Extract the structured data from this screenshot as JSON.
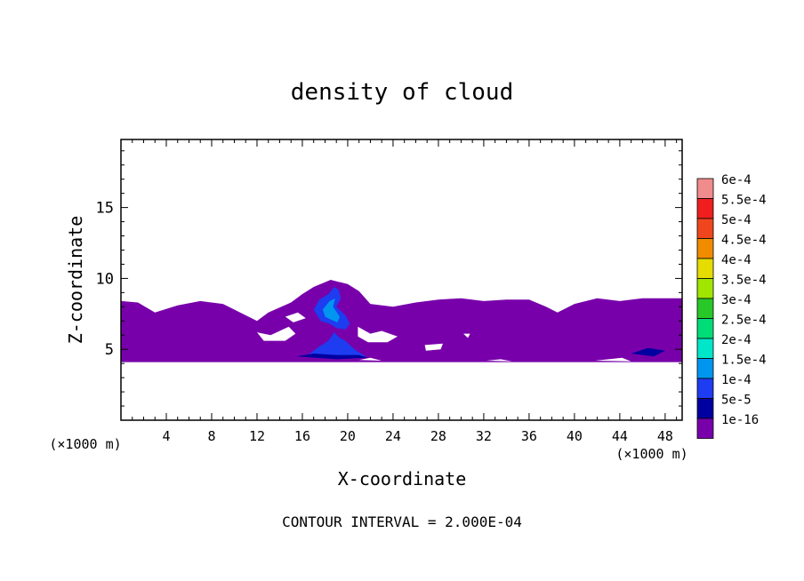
{
  "chart_data": {
    "type": "heatmap",
    "title": "density of cloud",
    "xlabel": "X-coordinate",
    "ylabel": "Z-coordinate",
    "x_unit": "(×1000 m)",
    "y_unit": "(×1000 m)",
    "xlim": [
      0,
      49.5
    ],
    "ylim": [
      0,
      19.8
    ],
    "xticks": [
      4,
      8,
      12,
      16,
      20,
      24,
      28,
      32,
      36,
      40,
      44,
      48
    ],
    "yticks": [
      5,
      10,
      15
    ],
    "footer": "CONTOUR INTERVAL = 2.000E-04",
    "colorbar": {
      "levels": [
        {
          "label": "6e-4",
          "color": "#f08c8c"
        },
        {
          "label": "5.5e-4",
          "color": "#f01e1e"
        },
        {
          "label": "5e-4",
          "color": "#f0461e"
        },
        {
          "label": "4.5e-4",
          "color": "#f08c00"
        },
        {
          "label": "4e-4",
          "color": "#e6dc00"
        },
        {
          "label": "3.5e-4",
          "color": "#a0e600"
        },
        {
          "label": "3e-4",
          "color": "#28c828"
        },
        {
          "label": "2.5e-4",
          "color": "#00dc78"
        },
        {
          "label": "2e-4",
          "color": "#00e6c8"
        },
        {
          "label": "1.5e-4",
          "color": "#0096f0"
        },
        {
          "label": "1e-4",
          "color": "#1e3cf0"
        },
        {
          "label": "5e-5",
          "color": "#0000a0"
        },
        {
          "label": "1e-16",
          "color": "#7800aa"
        }
      ]
    },
    "regions": [
      {
        "name": "cloud-layer",
        "level": "1e-16",
        "top": [
          [
            0,
            8.4
          ],
          [
            1.5,
            8.3
          ],
          [
            3,
            7.6
          ],
          [
            5,
            8.1
          ],
          [
            7,
            8.4
          ],
          [
            9,
            8.2
          ],
          [
            11,
            7.4
          ],
          [
            12,
            7.0
          ],
          [
            13,
            7.6
          ],
          [
            15,
            8.3
          ],
          [
            16,
            8.9
          ],
          [
            17,
            9.4
          ],
          [
            18.5,
            9.9
          ],
          [
            20,
            9.6
          ],
          [
            21,
            9.1
          ],
          [
            22,
            8.2
          ],
          [
            24,
            8.0
          ],
          [
            26,
            8.3
          ],
          [
            28,
            8.5
          ],
          [
            30,
            8.6
          ],
          [
            32,
            8.4
          ],
          [
            34,
            8.5
          ],
          [
            36,
            8.5
          ],
          [
            37.5,
            8.0
          ],
          [
            38.5,
            7.6
          ],
          [
            40,
            8.2
          ],
          [
            42,
            8.6
          ],
          [
            44,
            8.4
          ],
          [
            46,
            8.6
          ],
          [
            49.5,
            8.6
          ]
        ],
        "bottom": [
          [
            0,
            4.1
          ],
          [
            49.5,
            4.1
          ]
        ]
      },
      {
        "name": "updraft-core",
        "level": "1e-4",
        "outline": [
          [
            17,
            7.8
          ],
          [
            17.5,
            8.5
          ],
          [
            18.3,
            8.9
          ],
          [
            18.8,
            9.4
          ],
          [
            19.2,
            9.2
          ],
          [
            19.4,
            8.6
          ],
          [
            19.0,
            8.0
          ],
          [
            19.8,
            7.4
          ],
          [
            20.2,
            6.8
          ],
          [
            19.8,
            6.4
          ],
          [
            19.0,
            6.5
          ],
          [
            18.4,
            6.8
          ],
          [
            17.6,
            7.0
          ]
        ]
      },
      {
        "name": "updraft-inner",
        "level": "1.5e-4",
        "outline": [
          [
            17.8,
            7.8
          ],
          [
            18.4,
            8.4
          ],
          [
            18.9,
            8.6
          ],
          [
            18.7,
            8.0
          ],
          [
            19.3,
            7.3
          ],
          [
            19.1,
            6.9
          ],
          [
            18.5,
            7.1
          ],
          [
            18.0,
            7.3
          ]
        ]
      },
      {
        "name": "outflow-base",
        "level": "1e-4",
        "outline": [
          [
            16.5,
            4.6
          ],
          [
            17.5,
            5.2
          ],
          [
            18.3,
            5.6
          ],
          [
            18.8,
            6.2
          ],
          [
            19.3,
            5.8
          ],
          [
            19.8,
            5.6
          ],
          [
            20.6,
            5.0
          ],
          [
            21.6,
            4.5
          ],
          [
            19,
            4.4
          ]
        ]
      },
      {
        "name": "outflow-fringe",
        "level": "5e-5",
        "outline": [
          [
            15.5,
            4.5
          ],
          [
            17,
            4.7
          ],
          [
            19,
            4.6
          ],
          [
            21,
            4.6
          ],
          [
            21.8,
            4.4
          ],
          [
            19,
            4.3
          ]
        ]
      },
      {
        "name": "east-patch",
        "level": "5e-5",
        "outline": [
          [
            45,
            4.7
          ],
          [
            46.5,
            5.1
          ],
          [
            48,
            4.9
          ],
          [
            47,
            4.5
          ]
        ]
      }
    ],
    "holes": [
      [
        [
          12,
          6.2
        ],
        [
          13.2,
          6.0
        ],
        [
          14.8,
          6.6
        ],
        [
          15.4,
          6.1
        ],
        [
          14.5,
          5.6
        ],
        [
          12.6,
          5.6
        ]
      ],
      [
        [
          20.9,
          6.6
        ],
        [
          22,
          6.1
        ],
        [
          23,
          6.3
        ],
        [
          24.4,
          5.9
        ],
        [
          23.5,
          5.5
        ],
        [
          21.8,
          5.5
        ],
        [
          20.9,
          5.9
        ]
      ],
      [
        [
          14.5,
          7.3
        ],
        [
          15.6,
          7.6
        ],
        [
          16.3,
          7.2
        ],
        [
          15.2,
          6.9
        ]
      ],
      [
        [
          26.8,
          5.3
        ],
        [
          28.4,
          5.4
        ],
        [
          28.2,
          5.0
        ],
        [
          26.9,
          4.9
        ]
      ],
      [
        [
          30.2,
          6.1
        ],
        [
          30.8,
          6.1
        ],
        [
          30.6,
          5.8
        ]
      ],
      [
        [
          41.8,
          4.2
        ],
        [
          44.2,
          4.4
        ],
        [
          45,
          4.15
        ]
      ],
      [
        [
          21.0,
          4.25
        ],
        [
          22,
          4.4
        ],
        [
          23,
          4.2
        ]
      ],
      [
        [
          32.2,
          4.2
        ],
        [
          33.5,
          4.3
        ],
        [
          34.5,
          4.15
        ]
      ]
    ]
  }
}
